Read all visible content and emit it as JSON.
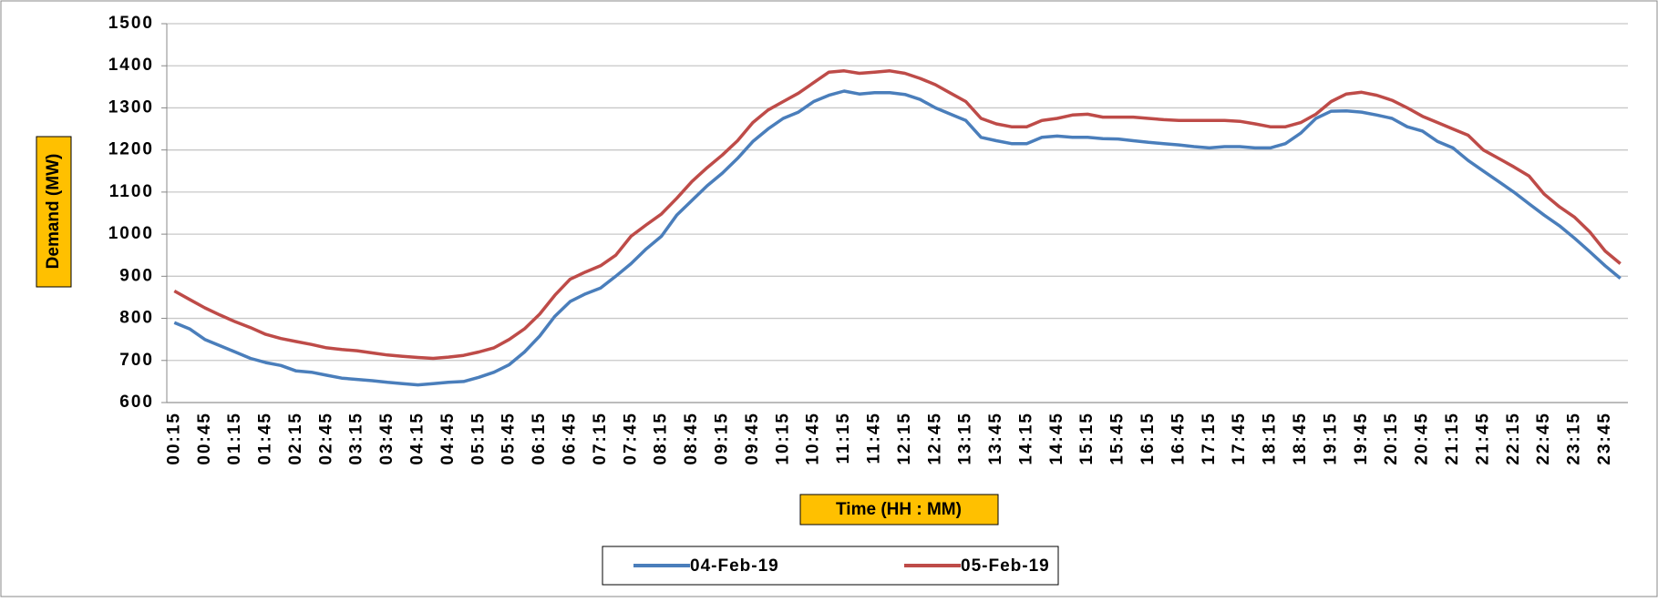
{
  "chart_data": {
    "type": "line",
    "x_title": "Time (HH : MM)",
    "y_title": "Demand (MW)",
    "categories": [
      "00:15",
      null,
      "00:45",
      null,
      "01:15",
      null,
      "01:45",
      null,
      "02:15",
      null,
      "02:45",
      null,
      "03:15",
      null,
      "03:45",
      null,
      "04:15",
      null,
      "04:45",
      null,
      "05:15",
      null,
      "05:45",
      null,
      "06:15",
      null,
      "06:45",
      null,
      "07:15",
      null,
      "07:45",
      null,
      "08:15",
      null,
      "08:45",
      null,
      "09:15",
      null,
      "09:45",
      null,
      "10:15",
      null,
      "10:45",
      null,
      "11:15",
      null,
      "11:45",
      null,
      "12:15",
      null,
      "12:45",
      null,
      "13:15",
      null,
      "13:45",
      null,
      "14:15",
      null,
      "14:45",
      null,
      "15:15",
      null,
      "15:45",
      null,
      "16:15",
      null,
      "16:45",
      null,
      "17:15",
      null,
      "17:45",
      null,
      "18:15",
      null,
      "18:45",
      null,
      "19:15",
      null,
      "19:45",
      null,
      "20:15",
      null,
      "20:45",
      null,
      "21:15",
      null,
      "21:45",
      null,
      "22:15",
      null,
      "22:45",
      null,
      "23:15",
      null,
      "23:45",
      null
    ],
    "series": [
      {
        "name": "04-Feb-19",
        "color": "#4a7ebb",
        "values": [
          790,
          775,
          750,
          735,
          720,
          705,
          695,
          688,
          675,
          672,
          665,
          658,
          655,
          652,
          648,
          645,
          642,
          645,
          648,
          650,
          660,
          672,
          690,
          720,
          758,
          805,
          840,
          858,
          872,
          900,
          930,
          965,
          995,
          1045,
          1080,
          1115,
          1145,
          1180,
          1220,
          1250,
          1275,
          1290,
          1315,
          1330,
          1340,
          1333,
          1336,
          1336,
          1332,
          1320,
          1300,
          1285,
          1270,
          1230,
          1222,
          1215,
          1215,
          1230,
          1233,
          1230,
          1230,
          1227,
          1226,
          1222,
          1218,
          1215,
          1212,
          1208,
          1205,
          1208,
          1208,
          1205,
          1205,
          1215,
          1240,
          1275,
          1292,
          1293,
          1290,
          1283,
          1275,
          1255,
          1245,
          1220,
          1205,
          1175,
          1150,
          1125,
          1100,
          1072,
          1045,
          1020,
          990,
          958,
          925,
          895
        ]
      },
      {
        "name": "05-Feb-19",
        "color": "#be4b48",
        "values": [
          865,
          845,
          825,
          808,
          792,
          778,
          762,
          752,
          745,
          738,
          730,
          726,
          723,
          718,
          713,
          710,
          707,
          705,
          708,
          712,
          720,
          730,
          750,
          775,
          810,
          855,
          893,
          910,
          925,
          950,
          995,
          1022,
          1048,
          1085,
          1125,
          1158,
          1188,
          1222,
          1265,
          1295,
          1315,
          1335,
          1360,
          1385,
          1388,
          1382,
          1385,
          1388,
          1382,
          1370,
          1355,
          1335,
          1315,
          1275,
          1262,
          1255,
          1255,
          1270,
          1275,
          1283,
          1285,
          1278,
          1278,
          1278,
          1275,
          1272,
          1270,
          1270,
          1270,
          1270,
          1268,
          1262,
          1255,
          1255,
          1265,
          1285,
          1315,
          1333,
          1337,
          1330,
          1318,
          1300,
          1280,
          1265,
          1250,
          1235,
          1200,
          1180,
          1160,
          1138,
          1095,
          1065,
          1040,
          1005,
          960,
          930
        ]
      }
    ],
    "ylim": [
      600,
      1500
    ],
    "yticks": [
      600,
      700,
      800,
      900,
      1000,
      1100,
      1200,
      1300,
      1400,
      1500
    ],
    "grid": true
  }
}
